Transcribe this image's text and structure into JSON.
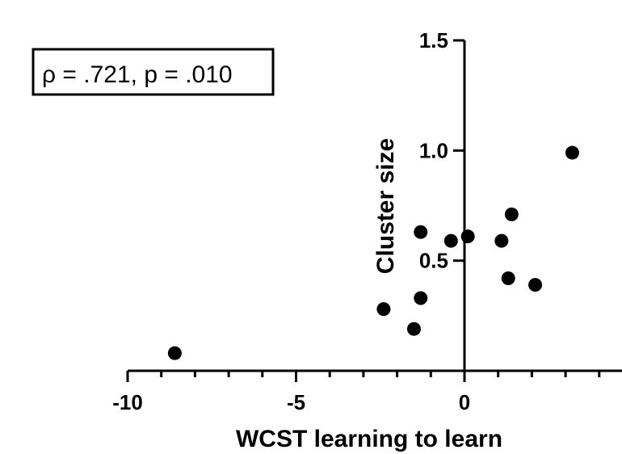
{
  "chart_data": {
    "type": "scatter",
    "title": "",
    "xlabel": "WCST learning to learn",
    "ylabel": "Cluster size",
    "xlim": [
      -10,
      4.3
    ],
    "ylim": [
      0,
      1.5
    ],
    "x_ticks": [
      -10,
      -5,
      0
    ],
    "x_tick_labels": [
      "-10",
      "-5",
      "0"
    ],
    "x_minor_step": 1,
    "y_ticks": [
      0.5,
      1.0,
      1.5
    ],
    "y_tick_labels": [
      "0.5",
      "1.0",
      "1.5"
    ],
    "grid": false,
    "legend": "none",
    "annotation": "ρ = .721, p = .010",
    "annotation_position": "top-left",
    "marker_color": "#000000",
    "points": [
      {
        "x": -8.6,
        "y": 0.08
      },
      {
        "x": -2.4,
        "y": 0.28
      },
      {
        "x": -1.5,
        "y": 0.19
      },
      {
        "x": -1.3,
        "y": 0.33
      },
      {
        "x": -1.3,
        "y": 0.63
      },
      {
        "x": -0.4,
        "y": 0.59
      },
      {
        "x": 0.1,
        "y": 0.61
      },
      {
        "x": 1.1,
        "y": 0.59
      },
      {
        "x": 1.3,
        "y": 0.42
      },
      {
        "x": 1.4,
        "y": 0.71
      },
      {
        "x": 2.1,
        "y": 0.39
      },
      {
        "x": 3.2,
        "y": 0.99
      }
    ]
  }
}
